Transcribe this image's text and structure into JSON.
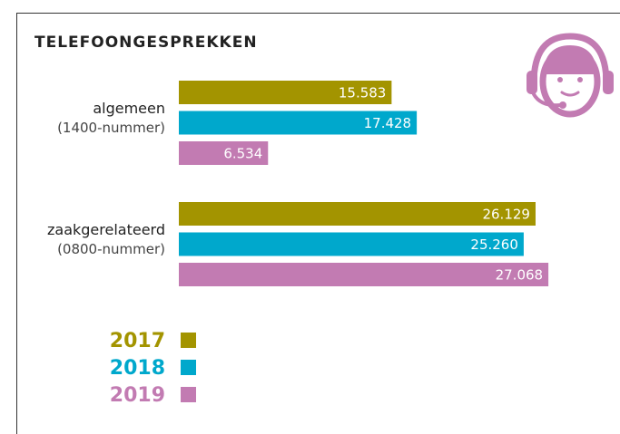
{
  "chart_data": {
    "type": "hbar",
    "title": "TELEFOONGESPREKKEN",
    "categories": [
      "algemeen",
      "zaakgerelateerd"
    ],
    "category_notes": [
      "(1400-nummer)",
      "(0800-nummer)"
    ],
    "series": [
      {
        "name": "2017",
        "color": "#a39400",
        "values": [
          15583,
          26129
        ],
        "value_labels": [
          "15.583",
          "26.129"
        ]
      },
      {
        "name": "2018",
        "color": "#00a8cc",
        "values": [
          17428,
          25260
        ],
        "value_labels": [
          "17.428",
          "25.260"
        ]
      },
      {
        "name": "2019",
        "color": "#c27bb2",
        "values": [
          6534,
          27068
        ],
        "value_labels": [
          "6.534",
          "27.068"
        ]
      }
    ]
  }
}
